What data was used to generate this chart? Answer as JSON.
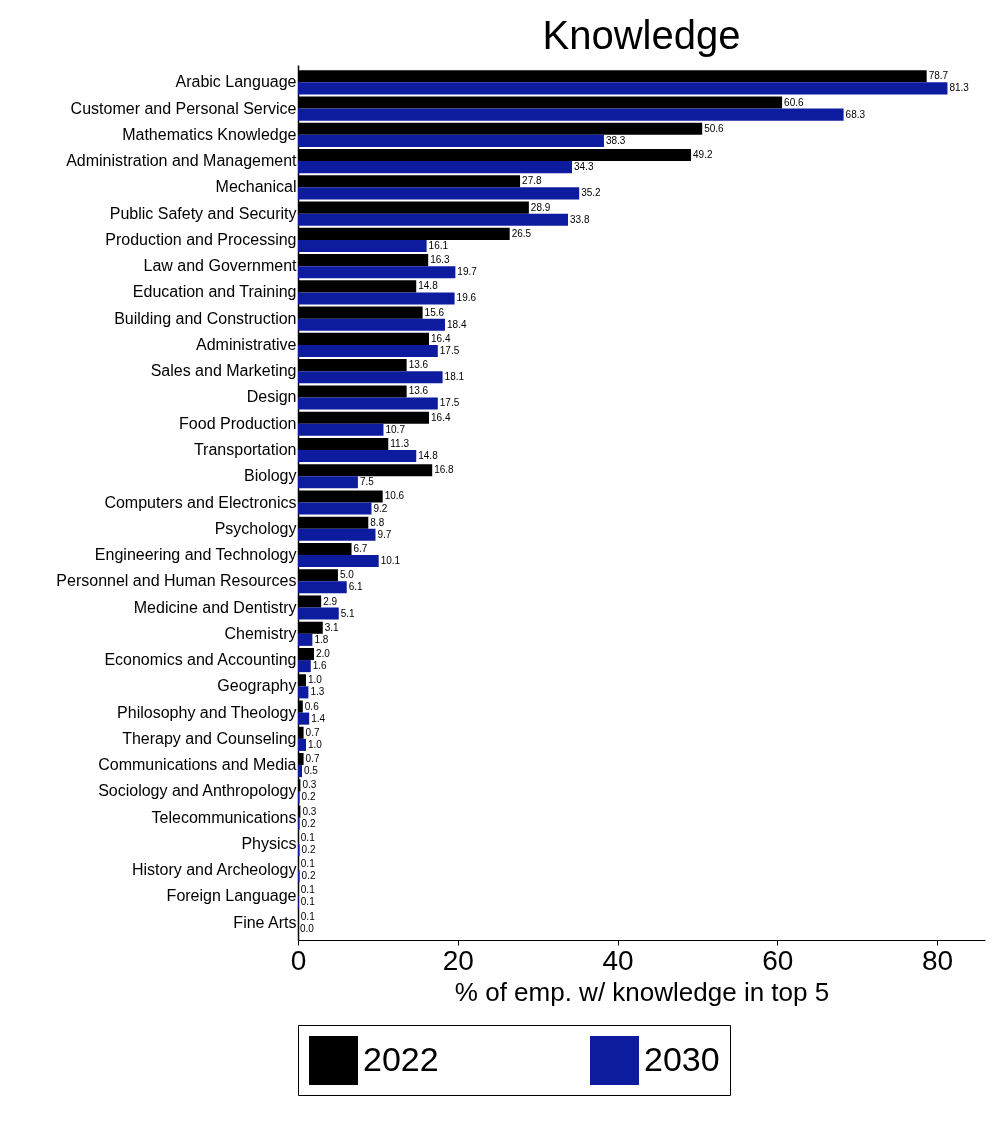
{
  "chart_data": {
    "type": "bar",
    "orientation": "horizontal",
    "title": "Knowledge",
    "xlabel": "% of emp. w/ knowledge in top 5",
    "categories": [
      "Arabic Language",
      "Customer and Personal Service",
      "Mathematics Knowledge",
      "Administration and Management",
      "Mechanical",
      "Public Safety and Security",
      "Production and Processing",
      "Law and Government",
      "Education and Training",
      "Building and Construction",
      "Administrative",
      "Sales and Marketing",
      "Design",
      "Food Production",
      "Transportation",
      "Biology",
      "Computers and Electronics",
      "Psychology",
      "Engineering and Technology",
      "Personnel and Human Resources",
      "Medicine and Dentistry",
      "Chemistry",
      "Economics and Accounting",
      "Geography",
      "Philosophy and Theology",
      "Therapy and Counseling",
      "Communications and Media",
      "Sociology and Anthropology",
      "Telecommunications",
      "Physics",
      "History and Archeology",
      "Foreign Language",
      "Fine Arts"
    ],
    "series": [
      {
        "name": "2022",
        "color": "#000000",
        "values": [
          78.7,
          60.6,
          50.6,
          49.2,
          27.8,
          28.9,
          26.5,
          16.3,
          14.8,
          15.6,
          16.4,
          13.6,
          13.6,
          16.4,
          11.3,
          16.8,
          10.6,
          8.8,
          6.7,
          5.0,
          2.9,
          3.1,
          2.0,
          1.0,
          0.6,
          0.7,
          0.7,
          0.3,
          0.3,
          0.1,
          0.1,
          0.1,
          0.1
        ],
        "value_labels": [
          "78.7",
          "60.6",
          "50.6",
          "49.2",
          "27.8",
          "28.9",
          "26.5",
          "16.3",
          "14.8",
          "15.6",
          "16.4",
          "13.6",
          "13.6",
          "16.4",
          "11.3",
          "16.8",
          "10.6",
          "8.8",
          "6.7",
          "5.0",
          "2.9",
          "3.1",
          "2.0",
          "1.0",
          "0.6",
          "0.7",
          "0.7",
          "0.3",
          "0.3",
          "0.1",
          "0.1",
          "0.1",
          "0.1"
        ]
      },
      {
        "name": "2030",
        "color": "#0d1b9e",
        "values": [
          81.3,
          68.3,
          38.3,
          34.3,
          35.2,
          33.8,
          16.1,
          19.7,
          19.6,
          18.4,
          17.5,
          18.1,
          17.5,
          10.7,
          14.8,
          7.5,
          9.2,
          9.7,
          10.1,
          6.1,
          5.1,
          1.8,
          1.6,
          1.3,
          1.4,
          1.0,
          0.5,
          0.2,
          0.2,
          0.2,
          0.2,
          0.1,
          0.0
        ],
        "value_labels": [
          "81.3",
          "68.3",
          "38.3",
          "34.3",
          "35.2",
          "33.8",
          "16.1",
          "19.7",
          "19.6",
          "18.4",
          "17.5",
          "18.1",
          "17.5",
          "10.7",
          "14.8",
          "7.5",
          "9.2",
          "9.7",
          "10.1",
          "6.1",
          "5.1",
          "1.8",
          "1.6",
          "1.3",
          "1.4",
          "1.0",
          "0.5",
          "0.2",
          "0.2",
          "0.2",
          "0.2",
          "0.1",
          "0.0"
        ]
      }
    ],
    "xlim": [
      0,
      86
    ],
    "xticks": [
      0,
      20,
      40,
      60,
      80
    ],
    "legend": "bottom",
    "grid": false
  }
}
